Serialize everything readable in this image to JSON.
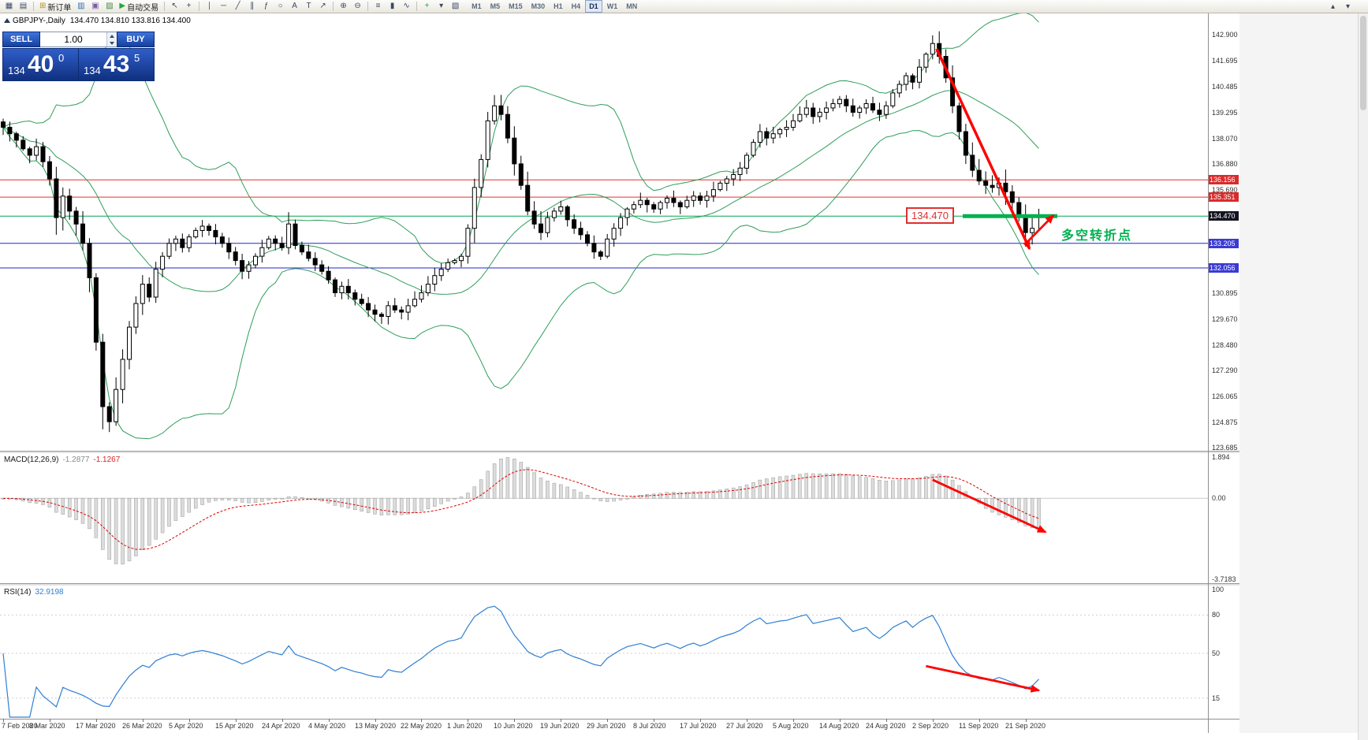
{
  "toolbar": {
    "items": [
      {
        "kind": "btn",
        "name": "new-chart-button",
        "glyph": "▦"
      },
      {
        "kind": "btn",
        "name": "tile-windows-button",
        "glyph": "▤"
      },
      {
        "kind": "sep"
      },
      {
        "kind": "btn",
        "name": "new-order-button",
        "glyph": "⊞",
        "glyph_color": "#b89018",
        "label": "新订单"
      },
      {
        "kind": "btn",
        "name": "market-watch-button",
        "glyph": "▥",
        "glyph_color": "#2d6db0"
      },
      {
        "kind": "btn",
        "name": "data-window-button",
        "glyph": "▣",
        "glyph_color": "#7a5aa0"
      },
      {
        "kind": "btn",
        "name": "terminal-button",
        "glyph": "▨",
        "glyph_color": "#4a8a4a"
      },
      {
        "kind": "btn",
        "name": "autotrading-button",
        "glyph": "▶",
        "glyph_color": "#1faa3c",
        "label": "自动交易"
      },
      {
        "kind": "sep"
      },
      {
        "kind": "btn",
        "name": "cursor-button",
        "glyph": "↖"
      },
      {
        "kind": "btn",
        "name": "crosshair-button",
        "glyph": "+"
      },
      {
        "kind": "sep"
      },
      {
        "kind": "btn",
        "name": "vertical-line-button",
        "glyph": "∣"
      },
      {
        "kind": "btn",
        "name": "horizontal-line-button",
        "glyph": "─"
      },
      {
        "kind": "btn",
        "name": "trendline-button",
        "glyph": "╱"
      },
      {
        "kind": "btn",
        "name": "channel-button",
        "glyph": "∥"
      },
      {
        "kind": "btn",
        "name": "fibonacci-button",
        "glyph": "ƒ"
      },
      {
        "kind": "btn",
        "name": "shapes-button",
        "glyph": "○"
      },
      {
        "kind": "btn",
        "name": "text-label-button",
        "glyph": "A"
      },
      {
        "kind": "btn",
        "name": "text-tool-button",
        "glyph": "T"
      },
      {
        "kind": "btn",
        "name": "arrow-objects-button",
        "glyph": "↗"
      },
      {
        "kind": "sep"
      },
      {
        "kind": "btn",
        "name": "zoom-in-button",
        "glyph": "⊕"
      },
      {
        "kind": "btn",
        "name": "zoom-out-button",
        "glyph": "⊖"
      },
      {
        "kind": "sep"
      },
      {
        "kind": "btn",
        "name": "bar-chart-button",
        "glyph": "≡"
      },
      {
        "kind": "btn",
        "name": "candlestick-chart-button",
        "glyph": "▮"
      },
      {
        "kind": "btn",
        "name": "line-chart-button",
        "glyph": "∿"
      },
      {
        "kind": "sep"
      },
      {
        "kind": "btn",
        "name": "indicators-button",
        "glyph": "+",
        "glyph_color": "#1faa3c"
      },
      {
        "kind": "btn",
        "name": "periods-dropdown-button",
        "glyph": "▾"
      },
      {
        "kind": "btn",
        "name": "templates-button",
        "glyph": "▧"
      }
    ],
    "timeframes": [
      "M1",
      "M5",
      "M15",
      "M30",
      "H1",
      "H4",
      "D1",
      "W1",
      "MN"
    ],
    "active_timeframe": "D1",
    "corner_items": [
      {
        "name": "toolbar-overflow-up-button",
        "glyph": "▴"
      },
      {
        "name": "toolbar-overflow-down-button",
        "glyph": "▾"
      }
    ]
  },
  "chart_header": {
    "symbol": "GBPJPY-,Daily",
    "ohlc": "134.470 134.810 133.816 134.400"
  },
  "trade_panel": {
    "sell_label": "SELL",
    "buy_label": "BUY",
    "volume": "1.00",
    "bid": {
      "small": "134",
      "big": "40",
      "sup": "0"
    },
    "ask": {
      "small": "134",
      "big": "43",
      "sup": "5"
    }
  },
  "price_axis": {
    "plain_ticks": [
      "142.900",
      "141.695",
      "140.485",
      "139.295",
      "138.070",
      "136.880",
      "135.690",
      "130.895",
      "129.670",
      "128.480",
      "127.290",
      "126.065",
      "124.875",
      "123.685"
    ],
    "line_labels": [
      {
        "text": "136.156",
        "value": 136.156,
        "bg": "#d92b2b"
      },
      {
        "text": "135.351",
        "value": 135.351,
        "bg": "#d92b2b"
      },
      {
        "text": "134.470",
        "value": 134.47,
        "bg": "#14141f"
      },
      {
        "text": "133.205",
        "value": 133.205,
        "bg": "#3a3ad6"
      },
      {
        "text": "132.056",
        "value": 132.056,
        "bg": "#3a3ad6"
      }
    ]
  },
  "hlines": [
    {
      "price": 136.156,
      "color": "#e03030"
    },
    {
      "price": 135.351,
      "color": "#e03030"
    },
    {
      "price": 134.47,
      "color": "#00a651"
    },
    {
      "price": 133.205,
      "color": "#2626cc"
    },
    {
      "price": 132.056,
      "color": "#2626cc"
    }
  ],
  "macd": {
    "label": "MACD(12,26,9)",
    "value_main": "-1.2877",
    "value_signal": "-1.1267",
    "axis": [
      {
        "text": "1.894",
        "v": 1.894
      },
      {
        "text": "0.00",
        "v": 0
      },
      {
        "text": "-3.7183",
        "v": -3.7183
      }
    ],
    "range": {
      "max": 1.894,
      "min": -3.7183
    },
    "params": {
      "fast": 12,
      "slow": 26,
      "signal": 9
    }
  },
  "rsi": {
    "label": "RSI(14)",
    "value": "32.9198",
    "period": 14,
    "axis": [
      {
        "text": "100",
        "v": 100
      },
      {
        "text": "80",
        "v": 80
      },
      {
        "text": "50",
        "v": 50
      },
      {
        "text": "15",
        "v": 15
      }
    ],
    "levels": [
      80,
      50,
      15
    ]
  },
  "annotations": {
    "price_tag": {
      "text": "134.470",
      "price": 134.47
    },
    "highlight_segment": {
      "price": 134.47,
      "from_candle": 144.5,
      "to_candle": 158.8,
      "color": "#00b050"
    },
    "note": {
      "text": "多空转折点",
      "color": "#00b050",
      "anchor_candle": 159.4,
      "price": 134.08
    },
    "arrow_color": "#ff0000",
    "arrows": [
      {
        "panel": "main",
        "from": [
          140.6,
          142.25
        ],
        "to": [
          154.6,
          132.95
        ],
        "width": 3.5
      },
      {
        "panel": "main",
        "from": [
          153.9,
          133.15
        ],
        "to": [
          158.2,
          134.5
        ],
        "width": 2.8
      },
      {
        "panel": "macd",
        "from": [
          140,
          0.85
        ],
        "to": [
          157,
          -1.55
        ],
        "width": 2.8
      },
      {
        "panel": "rsi",
        "from": [
          139,
          40
        ],
        "to": [
          156,
          21
        ],
        "width": 2.8
      }
    ]
  },
  "chart_data": {
    "type": "candlestick",
    "title": "GBPJPY-,Daily",
    "symbol": "GBPJPY-",
    "timeframe": "Daily",
    "last_candle_ohlc": {
      "open": 134.47,
      "high": 134.81,
      "low": 133.816,
      "close": 134.4
    },
    "ylim": [
      123.55,
      143.9
    ],
    "x_labels": [
      "7 Feb 2020",
      "8 Mar 2020",
      "17 Mar 2020",
      "26 Mar 2020",
      "5 Apr 2020",
      "15 Apr 2020",
      "24 Apr 2020",
      "4 May 2020",
      "13 May 2020",
      "22 May 2020",
      "1 Jun 2020",
      "10 Jun 2020",
      "19 Jun 2020",
      "29 Jun 2020",
      "8 Jul 2020",
      "17 Jul 2020",
      "27 Jul 2020",
      "5 Aug 2020",
      "14 Aug 2020",
      "24 Aug 2020",
      "2 Sep 2020",
      "11 Sep 2020",
      "21 Sep 2020"
    ],
    "candles_per_label": 7,
    "closes": [
      138.6,
      138.3,
      138.0,
      137.6,
      137.3,
      137.7,
      137.0,
      136.2,
      134.4,
      135.4,
      134.7,
      134.1,
      133.2,
      131.6,
      128.6,
      125.6,
      124.9,
      126.4,
      127.8,
      129.3,
      130.4,
      131.3,
      130.7,
      132.0,
      132.6,
      133.2,
      133.4,
      133.0,
      133.5,
      133.8,
      134.0,
      133.8,
      133.5,
      133.2,
      132.8,
      132.4,
      131.9,
      132.2,
      132.6,
      133.0,
      133.4,
      133.2,
      133.0,
      134.1,
      133.1,
      132.8,
      132.5,
      132.2,
      131.9,
      131.5,
      130.9,
      131.2,
      130.9,
      130.6,
      130.4,
      130.1,
      129.9,
      129.8,
      130.3,
      130.1,
      130.0,
      130.3,
      130.6,
      130.9,
      131.3,
      131.7,
      132.0,
      132.3,
      132.4,
      132.6,
      133.9,
      135.8,
      137.1,
      138.9,
      139.6,
      139.2,
      138.1,
      136.9,
      135.9,
      134.7,
      134.1,
      133.7,
      134.4,
      134.7,
      134.9,
      134.3,
      133.9,
      133.6,
      133.2,
      132.8,
      132.6,
      133.4,
      133.9,
      134.4,
      134.8,
      135.0,
      135.2,
      135.0,
      134.8,
      135.1,
      135.3,
      135.1,
      134.9,
      135.2,
      135.4,
      135.2,
      135.4,
      135.7,
      136.0,
      136.2,
      136.4,
      136.7,
      137.3,
      137.9,
      138.4,
      138.1,
      138.3,
      138.5,
      138.6,
      138.9,
      139.2,
      139.5,
      139.1,
      139.3,
      139.5,
      139.7,
      139.9,
      139.6,
      139.3,
      139.5,
      139.7,
      139.4,
      139.2,
      139.6,
      140.2,
      140.6,
      141.0,
      140.7,
      141.4,
      142.0,
      142.5,
      141.9,
      140.9,
      139.6,
      138.4,
      137.3,
      136.6,
      136.1,
      135.9,
      135.8,
      136.0,
      135.6,
      135.1,
      134.5,
      133.7,
      133.9,
      134.4
    ],
    "candle_overrides": {
      "8": {
        "low": 133.6
      },
      "15": {
        "low": 124.55
      },
      "43": {
        "high": 134.65
      },
      "57": {
        "low": 129.45
      },
      "74": {
        "high": 140.1
      },
      "140": {
        "high": 142.88
      },
      "154": {
        "low": 133.05
      },
      "156": {
        "open": 134.47,
        "high": 134.81,
        "low": 133.816
      }
    },
    "volatile_ranges": [
      [
        8,
        22
      ],
      [
        70,
        81
      ],
      [
        140,
        156
      ]
    ],
    "bollinger": {
      "period": 20,
      "deviation": 2,
      "color": "#2f9e5a"
    }
  }
}
